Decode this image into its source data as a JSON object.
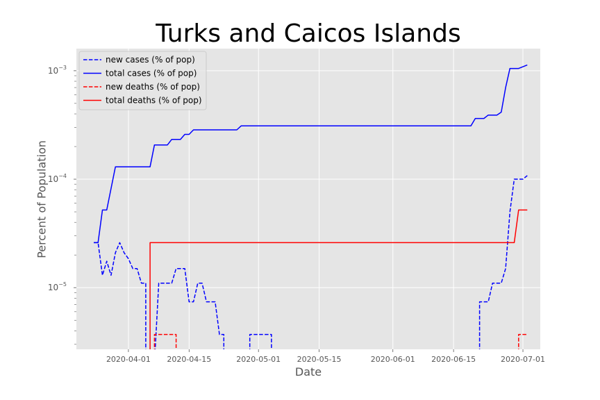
{
  "chart_data": {
    "type": "line",
    "title": "Turks and Caicos Islands",
    "xlabel": "Date",
    "ylabel": "Percent of Population",
    "yscale": "log",
    "ylim": [
      2.7e-06,
      0.0016
    ],
    "xlim": [
      "2020-03-20",
      "2020-07-05"
    ],
    "x_ticks": [
      "2020-04-01",
      "2020-04-15",
      "2020-05-01",
      "2020-05-15",
      "2020-06-01",
      "2020-06-15",
      "2020-07-01"
    ],
    "y_ticks": [
      {
        "value": 1e-05,
        "mant": "10",
        "exp": "−5"
      },
      {
        "value": 0.0001,
        "mant": "10",
        "exp": "−4"
      },
      {
        "value": 0.001,
        "mant": "10",
        "exp": "−3"
      }
    ],
    "grid": true,
    "legend_position": "top-left",
    "series": [
      {
        "name": "new cases (% of pop)",
        "color": "#0000ff",
        "style": "dashed",
        "points": [
          [
            "2020-03-24",
            2.6e-05
          ],
          [
            "2020-03-25",
            2.6e-05
          ],
          [
            "2020-03-26",
            1.3e-05
          ],
          [
            "2020-03-27",
            1.75e-05
          ],
          [
            "2020-03-28",
            1.3e-05
          ],
          [
            "2020-03-29",
            2.1e-05
          ],
          [
            "2020-03-30",
            2.6e-05
          ],
          [
            "2020-03-31",
            2.1e-05
          ],
          [
            "2020-04-01",
            1.85e-05
          ],
          [
            "2020-04-02",
            1.5e-05
          ],
          [
            "2020-04-03",
            1.5e-05
          ],
          [
            "2020-04-04",
            1.1e-05
          ],
          [
            "2020-04-05",
            1.1e-05
          ],
          [
            "2020-04-05",
            2e-06
          ],
          null,
          [
            "2020-04-07",
            2e-06
          ],
          [
            "2020-04-08",
            1.1e-05
          ],
          [
            "2020-04-09",
            1.1e-05
          ],
          [
            "2020-04-10",
            1.1e-05
          ],
          [
            "2020-04-11",
            1.1e-05
          ],
          [
            "2020-04-12",
            1.5e-05
          ],
          [
            "2020-04-13",
            1.5e-05
          ],
          [
            "2020-04-14",
            1.5e-05
          ],
          [
            "2020-04-15",
            7.4e-06
          ],
          [
            "2020-04-16",
            7.4e-06
          ],
          [
            "2020-04-17",
            1.1e-05
          ],
          [
            "2020-04-18",
            1.1e-05
          ],
          [
            "2020-04-19",
            7.4e-06
          ],
          [
            "2020-04-20",
            7.4e-06
          ],
          [
            "2020-04-21",
            7.4e-06
          ],
          [
            "2020-04-22",
            3.7e-06
          ],
          [
            "2020-04-23",
            3.7e-06
          ],
          [
            "2020-04-23",
            2e-06
          ],
          null,
          [
            "2020-04-29",
            2e-06
          ],
          [
            "2020-04-29",
            3.7e-06
          ],
          [
            "2020-05-04",
            3.7e-06
          ],
          [
            "2020-05-04",
            2e-06
          ],
          null,
          [
            "2020-06-21",
            2e-06
          ],
          [
            "2020-06-21",
            7.4e-06
          ],
          [
            "2020-06-23",
            7.4e-06
          ],
          [
            "2020-06-24",
            1.1e-05
          ],
          [
            "2020-06-26",
            1.1e-05
          ],
          [
            "2020-06-27",
            1.5e-05
          ],
          [
            "2020-06-28",
            5e-05
          ],
          [
            "2020-06-29",
            0.0001
          ],
          [
            "2020-07-01",
            0.0001
          ],
          [
            "2020-07-02",
            0.000108
          ]
        ]
      },
      {
        "name": "total cases (% of pop)",
        "color": "#0000ff",
        "style": "solid",
        "points": [
          [
            "2020-03-24",
            2.6e-05
          ],
          [
            "2020-03-25",
            2.6e-05
          ],
          [
            "2020-03-26",
            5.2e-05
          ],
          [
            "2020-03-27",
            5.2e-05
          ],
          [
            "2020-03-29",
            0.00013
          ],
          [
            "2020-04-06",
            0.00013
          ],
          [
            "2020-04-07",
            0.000207
          ],
          [
            "2020-04-10",
            0.000207
          ],
          [
            "2020-04-11",
            0.000233
          ],
          [
            "2020-04-13",
            0.000233
          ],
          [
            "2020-04-14",
            0.000259
          ],
          [
            "2020-04-15",
            0.000259
          ],
          [
            "2020-04-16",
            0.000285
          ],
          [
            "2020-04-26",
            0.000285
          ],
          [
            "2020-04-27",
            0.00031
          ],
          [
            "2020-06-19",
            0.00031
          ],
          [
            "2020-06-20",
            0.000363
          ],
          [
            "2020-06-22",
            0.000363
          ],
          [
            "2020-06-23",
            0.00039
          ],
          [
            "2020-06-25",
            0.00039
          ],
          [
            "2020-06-26",
            0.000415
          ],
          [
            "2020-06-27",
            0.0007
          ],
          [
            "2020-06-28",
            0.00105
          ],
          [
            "2020-06-30",
            0.00105
          ],
          [
            "2020-07-02",
            0.00113
          ]
        ]
      },
      {
        "name": "new deaths (% of pop)",
        "color": "#ff0000",
        "style": "dashed",
        "points": [
          [
            "2020-04-07",
            2e-06
          ],
          [
            "2020-04-07",
            3.7e-06
          ],
          [
            "2020-04-12",
            3.7e-06
          ],
          [
            "2020-04-12",
            2e-06
          ],
          null,
          [
            "2020-06-30",
            2e-06
          ],
          [
            "2020-06-30",
            3.7e-06
          ],
          [
            "2020-07-02",
            3.7e-06
          ]
        ]
      },
      {
        "name": "total deaths (% of pop)",
        "color": "#ff0000",
        "style": "solid",
        "points": [
          [
            "2020-04-06",
            2e-06
          ],
          [
            "2020-04-06",
            2.6e-05
          ],
          [
            "2020-06-29",
            2.6e-05
          ],
          [
            "2020-06-30",
            5.2e-05
          ],
          [
            "2020-07-02",
            5.2e-05
          ]
        ]
      }
    ]
  }
}
